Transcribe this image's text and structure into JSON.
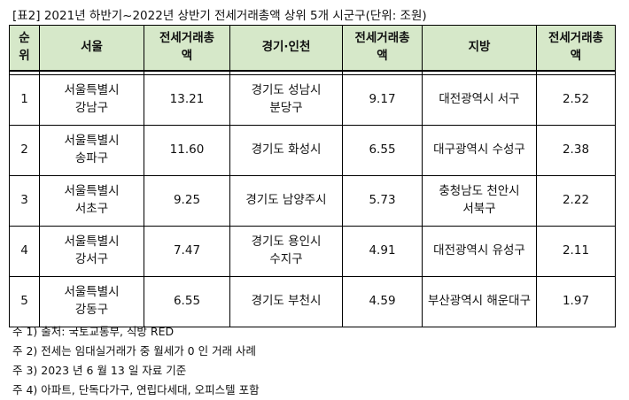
{
  "caption": "[표2] 2021년 하반기~2022년 상반기 전세거래총액 상위 5개 시군구(단위: 조원)",
  "headers": {
    "rank_l1": "순",
    "rank_l2": "위",
    "seoul": "서울",
    "amount_l1": "전세거래총",
    "amount_l2": "액",
    "gyeonggi": "경기·인천",
    "region": "지방"
  },
  "rows": [
    {
      "rank": "1",
      "seoul_l1": "서울특별시",
      "seoul_l2": "강남구",
      "seoul_amt": "13.21",
      "gg_l1": "경기도 성남시",
      "gg_l2": "분당구",
      "gg_amt": "9.17",
      "rg_l1": "대전광역시 서구",
      "rg_l2": "",
      "rg_amt": "2.52"
    },
    {
      "rank": "2",
      "seoul_l1": "서울특별시",
      "seoul_l2": "송파구",
      "seoul_amt": "11.60",
      "gg_l1": "경기도 화성시",
      "gg_l2": "",
      "gg_amt": "6.55",
      "rg_l1": "대구광역시 수성구",
      "rg_l2": "",
      "rg_amt": "2.38"
    },
    {
      "rank": "3",
      "seoul_l1": "서울특별시",
      "seoul_l2": "서초구",
      "seoul_amt": "9.25",
      "gg_l1": "경기도 남양주시",
      "gg_l2": "",
      "gg_amt": "5.73",
      "rg_l1": "충청남도 천안시",
      "rg_l2": "서북구",
      "rg_amt": "2.22"
    },
    {
      "rank": "4",
      "seoul_l1": "서울특별시",
      "seoul_l2": "강서구",
      "seoul_amt": "7.47",
      "gg_l1": "경기도 용인시",
      "gg_l2": "수지구",
      "gg_amt": "4.91",
      "rg_l1": "대전광역시 유성구",
      "rg_l2": "",
      "rg_amt": "2.11"
    },
    {
      "rank": "5",
      "seoul_l1": "서울특별시",
      "seoul_l2": "강동구",
      "seoul_amt": "6.55",
      "gg_l1": "경기도 부천시",
      "gg_l2": "",
      "gg_amt": "4.59",
      "rg_l1": "부산광역시 해운대구",
      "rg_l2": "",
      "rg_amt": "1.97"
    }
  ],
  "notes": [
    "주 1) 출처: 국토교통부, 직방 RED",
    "주 2) 전세는 임대실거래가 중 월세가 0 인 거래 사례",
    "주 3) 2023 년 6 월 13 일 자료 기준",
    "주 4) 아파트, 단독다가구, 연립다세대, 오피스텔 포함"
  ]
}
